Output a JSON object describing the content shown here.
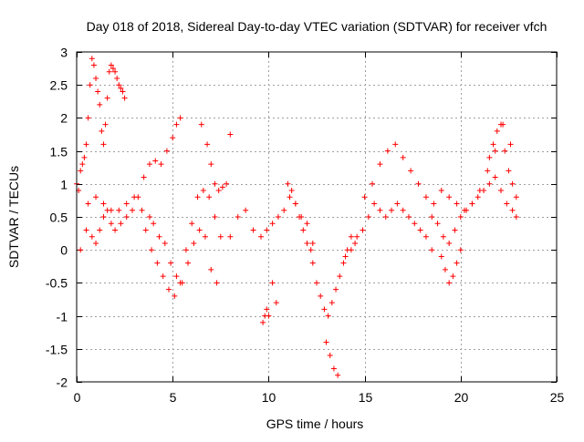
{
  "chart_data": {
    "type": "scatter",
    "title": "Day 018 of 2018, Sidereal Day-to-day VTEC variation (SDTVAR) for receiver vfch",
    "xlabel": "GPS time / hours",
    "ylabel": "SDTVAR / TECUs",
    "xlim": [
      0,
      25
    ],
    "ylim": [
      -2,
      3
    ],
    "xticks": [
      0,
      5,
      10,
      15,
      20,
      25
    ],
    "xtick_labels": [
      "0",
      "5",
      "10",
      "15",
      "20",
      "25"
    ],
    "yticks": [
      -2,
      -1.5,
      -1,
      -0.5,
      0,
      0.5,
      1,
      1.5,
      2,
      2.5,
      3
    ],
    "ytick_labels": [
      "-2",
      "-1.5",
      "-1",
      "-0.5",
      "0",
      "0.5",
      "1",
      "1.5",
      "2",
      "2.5",
      "3"
    ],
    "grid": true,
    "marker": "+",
    "series": [
      {
        "name": "SDTVAR",
        "color": "#ff0000",
        "x": [
          0.0,
          0.1,
          0.2,
          0.3,
          0.4,
          0.5,
          0.6,
          0.7,
          0.8,
          0.9,
          1.0,
          1.1,
          1.2,
          1.3,
          1.4,
          1.5,
          1.6,
          1.7,
          1.8,
          1.9,
          2.0,
          2.1,
          2.2,
          2.3,
          2.4,
          2.5,
          0.5,
          0.8,
          1.0,
          1.2,
          1.4,
          1.6,
          1.8,
          2.0,
          2.3,
          2.6,
          2.9,
          3.2,
          3.5,
          3.8,
          4.1,
          4.4,
          4.7,
          5.0,
          5.2,
          5.4,
          0.2,
          0.6,
          1.0,
          1.4,
          1.8,
          2.2,
          2.6,
          3.0,
          3.4,
          3.8,
          4.0,
          4.3,
          4.6,
          4.9,
          5.2,
          5.5,
          5.8,
          6.1,
          6.4,
          6.7,
          7.0,
          7.3,
          3.6,
          3.9,
          4.2,
          4.5,
          4.8,
          5.1,
          5.4,
          5.7,
          6.0,
          6.3,
          6.6,
          6.9,
          7.2,
          7.5,
          6.5,
          6.8,
          7.0,
          7.2,
          7.4,
          7.6,
          7.8,
          8.0,
          8.0,
          8.4,
          8.8,
          9.2,
          9.6,
          9.9,
          10.2,
          10.5,
          10.8,
          11.1,
          11.4,
          11.7,
          12.0,
          12.3,
          9.7,
          9.8,
          9.9,
          10.0,
          10.2,
          10.4,
          11.0,
          11.2,
          11.4,
          11.6,
          11.8,
          12.0,
          12.2,
          12.3,
          12.5,
          12.7,
          12.9,
          13.1,
          13.3,
          13.5,
          13.7,
          13.9,
          14.1,
          14.3,
          14.5,
          13.0,
          13.2,
          13.4,
          13.6,
          14.0,
          14.3,
          14.6,
          14.9,
          15.2,
          15.5,
          15.8,
          16.1,
          16.4,
          16.7,
          17.0,
          17.3,
          17.6,
          17.9,
          18.2,
          18.5,
          15.0,
          15.4,
          15.8,
          16.2,
          16.6,
          17.0,
          17.4,
          17.8,
          18.2,
          18.6,
          19.0,
          19.4,
          19.8,
          20.2,
          20.6,
          21.0,
          21.4,
          21.8,
          22.2,
          22.6,
          18.5,
          18.8,
          19.1,
          19.4,
          19.7,
          20.0,
          20.3,
          20.6,
          20.9,
          21.2,
          21.5,
          21.8,
          22.1,
          22.4,
          22.7,
          22.9,
          19.0,
          19.2,
          19.4,
          19.6,
          19.8,
          20.0,
          21.5,
          21.7,
          21.9,
          22.1,
          22.3,
          22.5,
          22.7,
          22.9
        ],
        "y": [
          1.0,
          0.9,
          1.2,
          1.3,
          1.4,
          1.6,
          2.0,
          2.5,
          2.9,
          2.8,
          2.6,
          2.4,
          2.2,
          1.8,
          1.6,
          1.9,
          2.3,
          2.7,
          2.8,
          2.75,
          2.7,
          2.6,
          2.5,
          2.45,
          2.4,
          2.3,
          0.3,
          0.2,
          0.1,
          0.3,
          0.5,
          0.6,
          0.4,
          0.3,
          0.4,
          0.5,
          0.6,
          0.8,
          1.1,
          1.3,
          1.35,
          1.3,
          1.5,
          1.7,
          1.9,
          2.0,
          0.0,
          0.7,
          0.8,
          0.7,
          0.6,
          0.6,
          0.7,
          0.8,
          0.6,
          0.5,
          0.4,
          0.2,
          0.1,
          -0.2,
          -0.4,
          -0.5,
          -0.2,
          0.1,
          0.3,
          0.2,
          -0.3,
          -0.5,
          0.3,
          0.0,
          -0.2,
          -0.4,
          -0.6,
          -0.7,
          -0.5,
          0.0,
          0.4,
          0.8,
          0.9,
          0.8,
          0.5,
          0.2,
          1.9,
          1.6,
          1.3,
          1.0,
          0.9,
          0.95,
          1.0,
          1.75,
          0.2,
          0.5,
          0.6,
          0.3,
          0.2,
          0.3,
          0.4,
          0.5,
          0.6,
          0.8,
          0.7,
          0.5,
          0.4,
          0.1,
          -1.1,
          -1.0,
          -0.9,
          -1.0,
          -0.5,
          -0.8,
          1.0,
          0.9,
          0.7,
          0.5,
          0.3,
          0.1,
          0.0,
          -0.2,
          -0.5,
          -0.7,
          -0.9,
          -1.0,
          -0.8,
          -0.6,
          -0.4,
          -0.2,
          0.0,
          0.2,
          0.1,
          -1.4,
          -1.6,
          -1.8,
          -1.9,
          -0.1,
          0.0,
          0.2,
          0.3,
          0.5,
          0.7,
          0.6,
          0.5,
          0.6,
          0.7,
          0.6,
          0.5,
          0.4,
          0.3,
          0.2,
          0.0,
          0.8,
          1.0,
          1.3,
          1.5,
          1.6,
          1.4,
          1.2,
          1.0,
          0.8,
          0.7,
          0.9,
          0.8,
          0.7,
          0.6,
          0.7,
          0.9,
          1.2,
          1.5,
          1.9,
          1.6,
          0.5,
          0.4,
          0.2,
          0.1,
          0.3,
          0.5,
          0.6,
          0.7,
          0.8,
          0.9,
          1.0,
          1.1,
          0.9,
          0.7,
          0.6,
          0.5,
          -0.1,
          -0.3,
          -0.5,
          -0.4,
          -0.2,
          0.0,
          1.4,
          1.6,
          1.8,
          1.9,
          1.5,
          1.2,
          1.0,
          0.8
        ]
      }
    ]
  }
}
